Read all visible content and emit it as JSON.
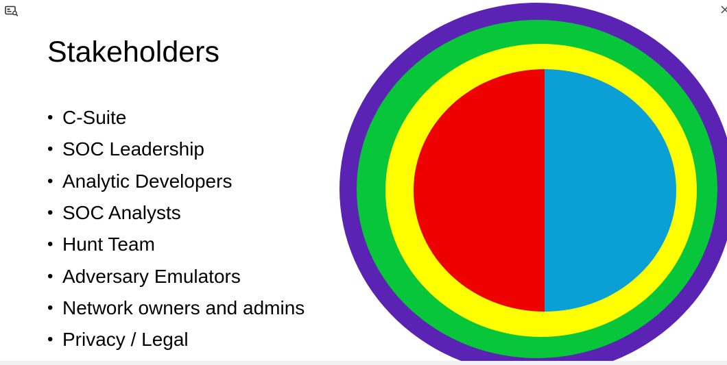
{
  "slide": {
    "title": "Stakeholders",
    "bullet_symbol": "•",
    "bullets": [
      "C-Suite",
      "SOC Leadership",
      "Analytic Developers",
      "SOC Analysts",
      "Hunt Team",
      "Adversary Emulators",
      "Network owners and admins",
      "Privacy / Legal"
    ]
  },
  "diagram": {
    "ring_colors": {
      "outer": "#5a23b4",
      "second": "#08c63a",
      "third": "#ffff00",
      "left_half": "#ee0000",
      "right_half": "#0aa0d6"
    }
  },
  "icons": {
    "viewer": "screen-capture-icon",
    "close": "close-icon"
  }
}
